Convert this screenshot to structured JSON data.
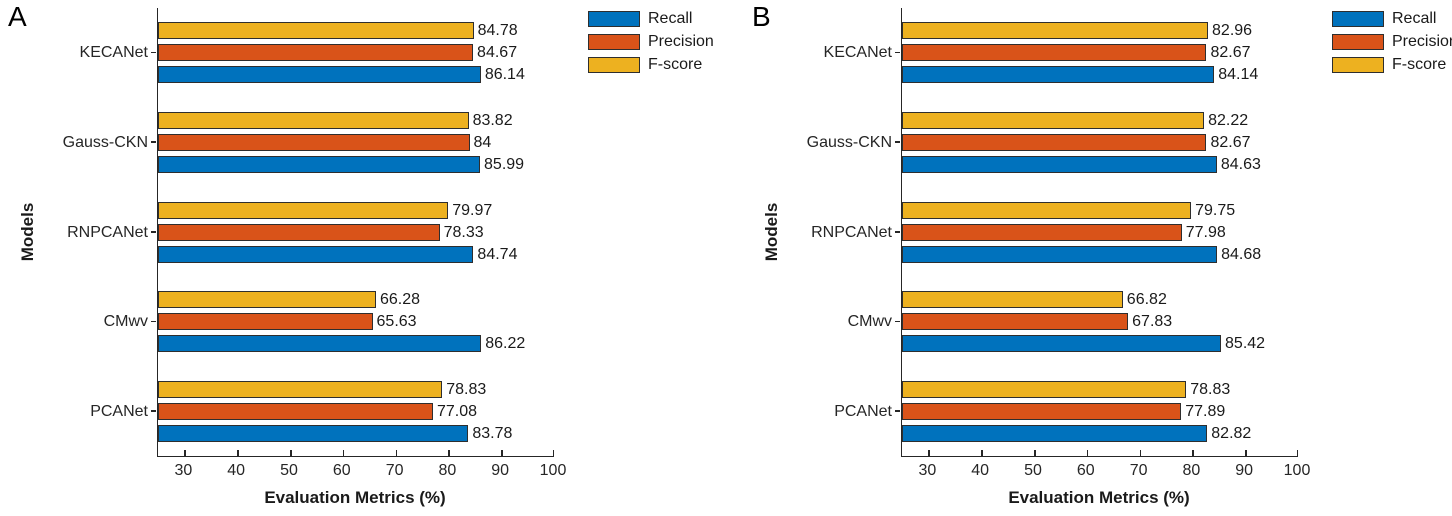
{
  "figure": {
    "background": "#ffffff",
    "axis_color": "#262626",
    "bar_edge_color": "#2e2e2e",
    "series_colors": {
      "Recall": "#0072BD",
      "Precision": "#D95319",
      "F-score": "#EDB120"
    }
  },
  "chart_data": [
    {
      "type": "bar",
      "orientation": "horizontal",
      "panel_label": "A",
      "xlabel": "Evaluation Metrics (%)",
      "ylabel": "Models",
      "xlim": [
        25,
        100
      ],
      "xticks": [
        30,
        40,
        50,
        60,
        70,
        80,
        90,
        100
      ],
      "grid": false,
      "legend_position": "outside-top-right",
      "categories": [
        "KECANet",
        "Gauss-CKN",
        "RNPCANet",
        "CMwv",
        "PCANet"
      ],
      "series": [
        {
          "name": "Recall",
          "color": "#0072BD",
          "values": [
            86.14,
            85.99,
            84.74,
            86.22,
            83.78
          ]
        },
        {
          "name": "Precision",
          "color": "#D95319",
          "values": [
            84.67,
            84,
            78.33,
            65.63,
            77.08
          ]
        },
        {
          "name": "F-score",
          "color": "#EDB120",
          "values": [
            84.78,
            83.82,
            79.97,
            66.28,
            78.83
          ]
        }
      ]
    },
    {
      "type": "bar",
      "orientation": "horizontal",
      "panel_label": "B",
      "xlabel": "Evaluation Metrics (%)",
      "ylabel": "Models",
      "xlim": [
        25,
        100
      ],
      "xticks": [
        30,
        40,
        50,
        60,
        70,
        80,
        90,
        100
      ],
      "grid": false,
      "legend_position": "outside-top-right",
      "categories": [
        "KECANet",
        "Gauss-CKN",
        "RNPCANet",
        "CMwv",
        "PCANet"
      ],
      "series": [
        {
          "name": "Recall",
          "color": "#0072BD",
          "values": [
            84.14,
            84.63,
            84.68,
            85.42,
            82.82
          ]
        },
        {
          "name": "Precision",
          "color": "#D95319",
          "values": [
            82.67,
            82.67,
            77.98,
            67.83,
            77.89
          ]
        },
        {
          "name": "F-score",
          "color": "#EDB120",
          "values": [
            82.96,
            82.22,
            79.75,
            66.82,
            78.83
          ]
        }
      ]
    }
  ]
}
